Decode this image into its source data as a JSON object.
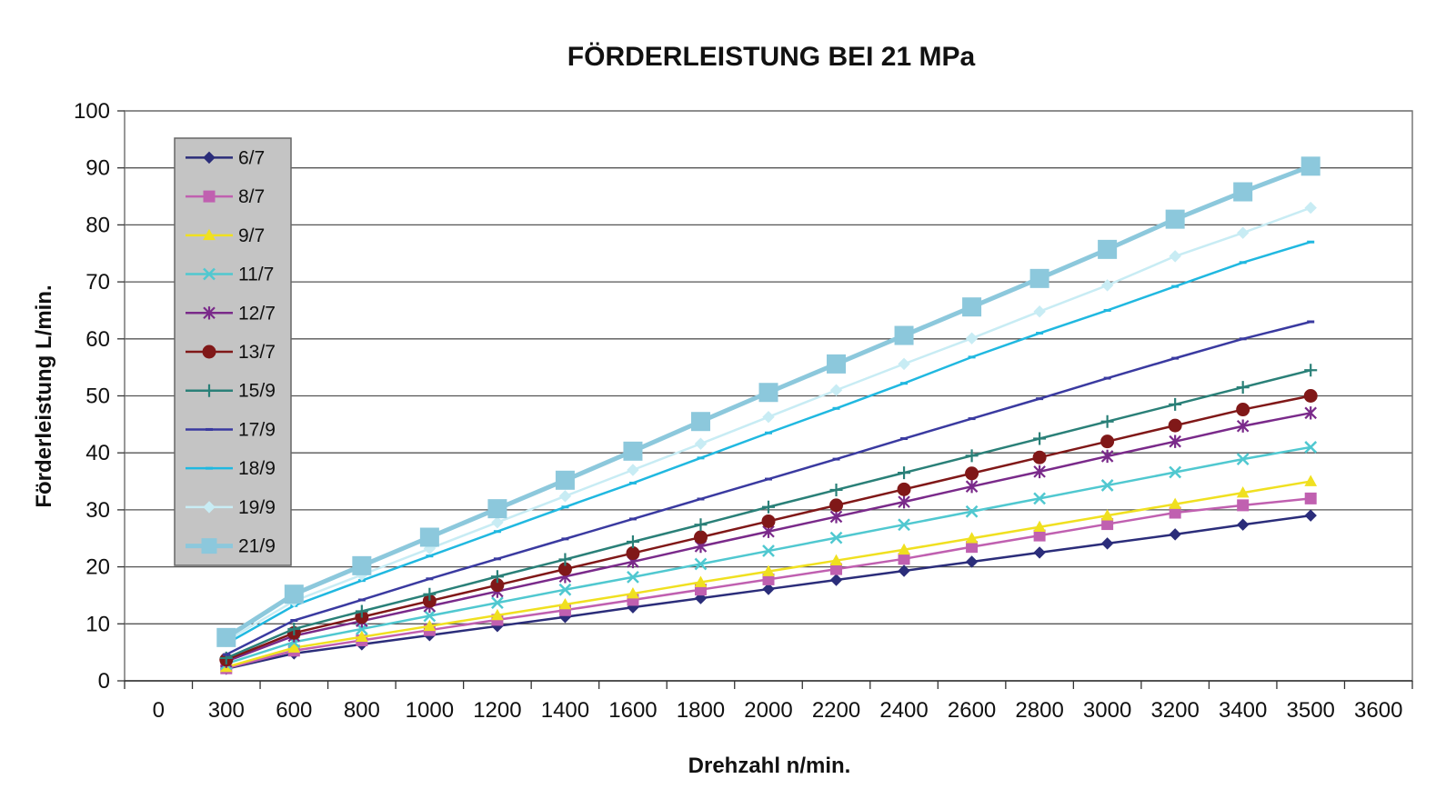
{
  "chart_data": {
    "type": "line",
    "title": "FÖRDERLEISTUNG BEI 21 MPa",
    "xlabel": "Drehzahl n/min.",
    "ylabel": "Förderleistung L/min.",
    "ylim": [
      0,
      100
    ],
    "yticks": [
      "0",
      "10",
      "20",
      "30",
      "40",
      "50",
      "60",
      "70",
      "80",
      "90",
      "100"
    ],
    "xtick_labels": [
      "0",
      "300",
      "600",
      "800",
      "1000",
      "1200",
      "1400",
      "1600",
      "1800",
      "2000",
      "2200",
      "2400",
      "2600",
      "2800",
      "3000",
      "3200",
      "3400",
      "3500",
      "3600"
    ],
    "grid": "horizontal",
    "legend_position": "top-left",
    "categories": [
      "300",
      "600",
      "800",
      "1000",
      "1200",
      "1400",
      "1600",
      "1800",
      "2000",
      "2200",
      "2400",
      "2600",
      "2800",
      "3000",
      "3200",
      "3400",
      "3500"
    ],
    "series": [
      {
        "name": "6/7",
        "color": "#2b2d7a",
        "marker": "diamond",
        "values": [
          2.1,
          4.8,
          6.4,
          8.0,
          9.6,
          11.2,
          12.9,
          14.5,
          16.1,
          17.7,
          19.3,
          20.9,
          22.5,
          24.1,
          25.7,
          27.4,
          29.0
        ]
      },
      {
        "name": "8/7",
        "color": "#c060b0",
        "marker": "square",
        "values": [
          2.2,
          5.3,
          7.1,
          8.9,
          10.7,
          12.4,
          14.2,
          16.0,
          17.8,
          19.6,
          21.4,
          23.5,
          25.5,
          27.5,
          29.5,
          30.8,
          32.0
        ]
      },
      {
        "name": "9/7",
        "color": "#f0e020",
        "marker": "triangle",
        "values": [
          2.4,
          5.8,
          7.7,
          9.6,
          11.5,
          13.4,
          15.3,
          17.3,
          19.2,
          21.1,
          23.0,
          25.0,
          27.0,
          29.0,
          31.0,
          33.0,
          35.0
        ]
      },
      {
        "name": "11/7",
        "color": "#50c8d0",
        "marker": "x",
        "values": [
          3.0,
          6.8,
          9.1,
          11.4,
          13.7,
          16.0,
          18.2,
          20.5,
          22.8,
          25.1,
          27.4,
          29.7,
          32.0,
          34.3,
          36.6,
          38.9,
          41.0
        ]
      },
      {
        "name": "12/7",
        "color": "#7a2a8a",
        "marker": "star",
        "values": [
          3.4,
          7.9,
          10.5,
          13.1,
          15.7,
          18.3,
          20.9,
          23.6,
          26.2,
          28.8,
          31.4,
          34.1,
          36.7,
          39.4,
          42.0,
          44.7,
          47.0
        ]
      },
      {
        "name": "13/7",
        "color": "#801818",
        "marker": "circle",
        "values": [
          3.7,
          8.4,
          11.2,
          14.0,
          16.8,
          19.6,
          22.4,
          25.2,
          28.0,
          30.8,
          33.6,
          36.4,
          39.2,
          42.0,
          44.8,
          47.6,
          50.0
        ]
      },
      {
        "name": "15/9",
        "color": "#2a8078",
        "marker": "plus",
        "values": [
          4.0,
          9.1,
          12.2,
          15.2,
          18.3,
          21.3,
          24.4,
          27.4,
          30.5,
          33.5,
          36.5,
          39.5,
          42.5,
          45.5,
          48.5,
          51.5,
          54.5
        ]
      },
      {
        "name": "17/9",
        "color": "#3a3aa0",
        "marker": "dash",
        "values": [
          4.6,
          10.6,
          14.2,
          17.9,
          21.4,
          24.9,
          28.4,
          31.9,
          35.4,
          38.9,
          42.5,
          46.0,
          49.5,
          53.1,
          56.6,
          60.0,
          63.0
        ]
      },
      {
        "name": "18/9",
        "color": "#20b8e0",
        "marker": "dash",
        "values": [
          6.5,
          13.2,
          17.6,
          21.9,
          26.2,
          30.5,
          34.7,
          39.1,
          43.5,
          47.8,
          52.2,
          56.8,
          61.0,
          65.0,
          69.2,
          73.4,
          77.0
        ]
      },
      {
        "name": "19/9",
        "color": "#c8ecf4",
        "marker": "diamond",
        "values": [
          7.0,
          14.0,
          18.6,
          23.2,
          27.8,
          32.4,
          37.0,
          41.6,
          46.3,
          51.0,
          55.6,
          60.1,
          64.8,
          69.4,
          74.5,
          78.6,
          83.0
        ]
      },
      {
        "name": "21/9",
        "color": "#8cc8dc",
        "marker": "square",
        "values": [
          7.6,
          15.2,
          20.2,
          25.2,
          30.2,
          35.2,
          40.3,
          45.5,
          50.6,
          55.6,
          60.6,
          65.6,
          70.6,
          75.7,
          81.0,
          85.8,
          90.3
        ]
      }
    ]
  }
}
